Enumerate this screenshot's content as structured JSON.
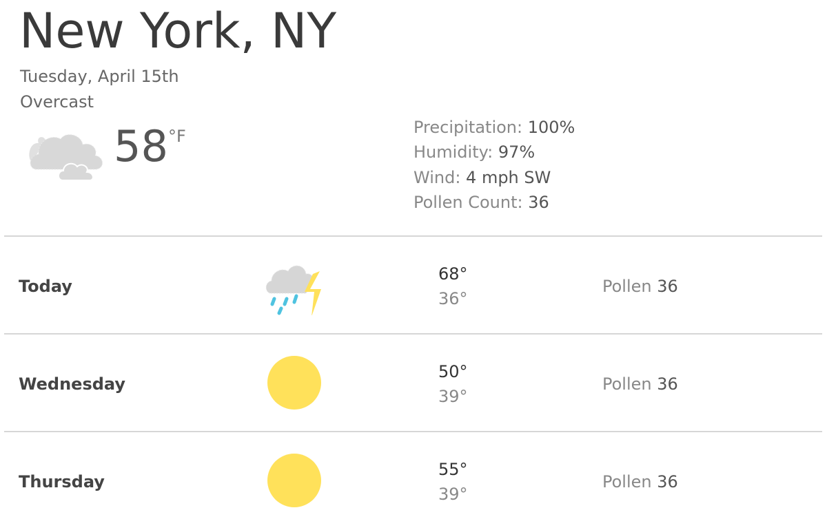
{
  "location": {
    "city": "New York, NY",
    "date": "Tuesday, April 15th",
    "condition": "Overcast"
  },
  "current": {
    "temperature": "58",
    "unit": "°F",
    "icon": "cloudy-icon"
  },
  "details": [
    {
      "label": "Precipitation:",
      "value": "100%"
    },
    {
      "label": "Humidity:",
      "value": "97%"
    },
    {
      "label": "Wind:",
      "value": "4 mph SW"
    },
    {
      "label": "Pollen Count:",
      "value": "36"
    }
  ],
  "forecast": [
    {
      "day": "Today",
      "icon": "thunderstorm-icon",
      "high": "68°",
      "low": "36°",
      "pollen_label": "Pollen",
      "pollen": "36"
    },
    {
      "day": "Wednesday",
      "icon": "sun-icon",
      "high": "50°",
      "low": "39°",
      "pollen_label": "Pollen",
      "pollen": "36"
    },
    {
      "day": "Thursday",
      "icon": "sun-icon",
      "high": "55°",
      "low": "39°",
      "pollen_label": "Pollen",
      "pollen": "36"
    }
  ],
  "colors": {
    "sun": "#ffe15a",
    "cloud": "#d8d8d8",
    "rain": "#4fc3e0",
    "bolt": "#ffe15a"
  }
}
